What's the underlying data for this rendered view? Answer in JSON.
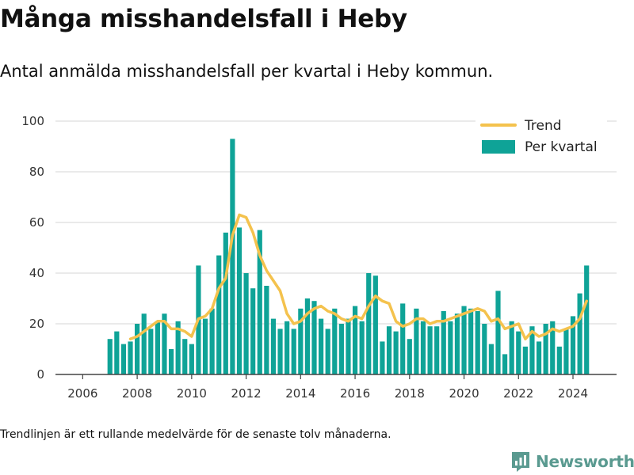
{
  "header": {
    "title": "Många misshandelsfall i Heby",
    "subtitle": "Antal anmälda misshandelsfall per kvartal i Heby kommun."
  },
  "footer": {
    "note": "Trendlinjen är ett rullande medelvärde för de senaste tolv månaderna.",
    "brand": "Newsworthy"
  },
  "colors": {
    "bar": "#0fa397",
    "trend": "#f4c24d",
    "grid": "#dddddd",
    "axis": "#444444",
    "brand": "#5a9a90"
  },
  "chart_data": {
    "type": "bar",
    "title": "Många misshandelsfall i Heby",
    "xlabel": "",
    "ylabel": "",
    "xlim": [
      2005.0,
      2025.6
    ],
    "ylim": [
      0,
      100
    ],
    "grid": true,
    "legend_position": "top-right",
    "x_ticks": [
      2006,
      2008,
      2010,
      2012,
      2014,
      2016,
      2018,
      2020,
      2022,
      2024
    ],
    "y_ticks": [
      0,
      20,
      40,
      60,
      80,
      100
    ],
    "series": [
      {
        "name": "Per kvartal",
        "type": "bar",
        "x": [
          2007.0,
          2007.25,
          2007.5,
          2007.75,
          2008.0,
          2008.25,
          2008.5,
          2008.75,
          2009.0,
          2009.25,
          2009.5,
          2009.75,
          2010.0,
          2010.25,
          2010.5,
          2010.75,
          2011.0,
          2011.25,
          2011.5,
          2011.75,
          2012.0,
          2012.25,
          2012.5,
          2012.75,
          2013.0,
          2013.25,
          2013.5,
          2013.75,
          2014.0,
          2014.25,
          2014.5,
          2014.75,
          2015.0,
          2015.25,
          2015.5,
          2015.75,
          2016.0,
          2016.25,
          2016.5,
          2016.75,
          2017.0,
          2017.25,
          2017.5,
          2017.75,
          2018.0,
          2018.25,
          2018.5,
          2018.75,
          2019.0,
          2019.25,
          2019.5,
          2019.75,
          2020.0,
          2020.25,
          2020.5,
          2020.75,
          2021.0,
          2021.25,
          2021.5,
          2021.75,
          2022.0,
          2022.25,
          2022.5,
          2022.75,
          2023.0,
          2023.25,
          2023.5,
          2023.75,
          2024.0,
          2024.25,
          2024.5
        ],
        "values": [
          14,
          17,
          12,
          13,
          20,
          24,
          18,
          21,
          24,
          10,
          21,
          14,
          12,
          43,
          22,
          26,
          47,
          56,
          93,
          58,
          40,
          34,
          57,
          35,
          22,
          18,
          21,
          18,
          26,
          30,
          29,
          22,
          18,
          26,
          20,
          22,
          27,
          21,
          40,
          39,
          13,
          19,
          17,
          28,
          14,
          26,
          21,
          19,
          19,
          25,
          21,
          24,
          27,
          26,
          25,
          20,
          12,
          33,
          8,
          21,
          17,
          11,
          19,
          13,
          20,
          21,
          11,
          18,
          23,
          32,
          43
        ]
      },
      {
        "name": "Trend",
        "type": "line",
        "x": [
          2007.75,
          2008.0,
          2008.25,
          2008.5,
          2008.75,
          2009.0,
          2009.25,
          2009.5,
          2009.75,
          2010.0,
          2010.25,
          2010.5,
          2010.75,
          2011.0,
          2011.25,
          2011.5,
          2011.75,
          2012.0,
          2012.25,
          2012.5,
          2012.75,
          2013.0,
          2013.25,
          2013.5,
          2013.75,
          2014.0,
          2014.25,
          2014.5,
          2014.75,
          2015.0,
          2015.25,
          2015.5,
          2015.75,
          2016.0,
          2016.25,
          2016.5,
          2016.75,
          2017.0,
          2017.25,
          2017.5,
          2017.75,
          2018.0,
          2018.25,
          2018.5,
          2018.75,
          2019.0,
          2019.25,
          2019.5,
          2019.75,
          2020.0,
          2020.25,
          2020.5,
          2020.75,
          2021.0,
          2021.25,
          2021.5,
          2021.75,
          2022.0,
          2022.25,
          2022.5,
          2022.75,
          2023.0,
          2023.25,
          2023.5,
          2023.75,
          2024.0,
          2024.25,
          2024.5
        ],
        "values": [
          14,
          15,
          17,
          19,
          21,
          21,
          18,
          18,
          17,
          15,
          22,
          23,
          26,
          34,
          38,
          55,
          63,
          62,
          56,
          47,
          41,
          37,
          33,
          24,
          20,
          21,
          24,
          26,
          27,
          25,
          24,
          22,
          21,
          23,
          22,
          27,
          31,
          29,
          28,
          21,
          19,
          20,
          22,
          22,
          20,
          21,
          21,
          22,
          23,
          24,
          25,
          26,
          25,
          21,
          22,
          18,
          19,
          20,
          14,
          17,
          15,
          16,
          18,
          17,
          18,
          19,
          22,
          29
        ]
      }
    ]
  }
}
